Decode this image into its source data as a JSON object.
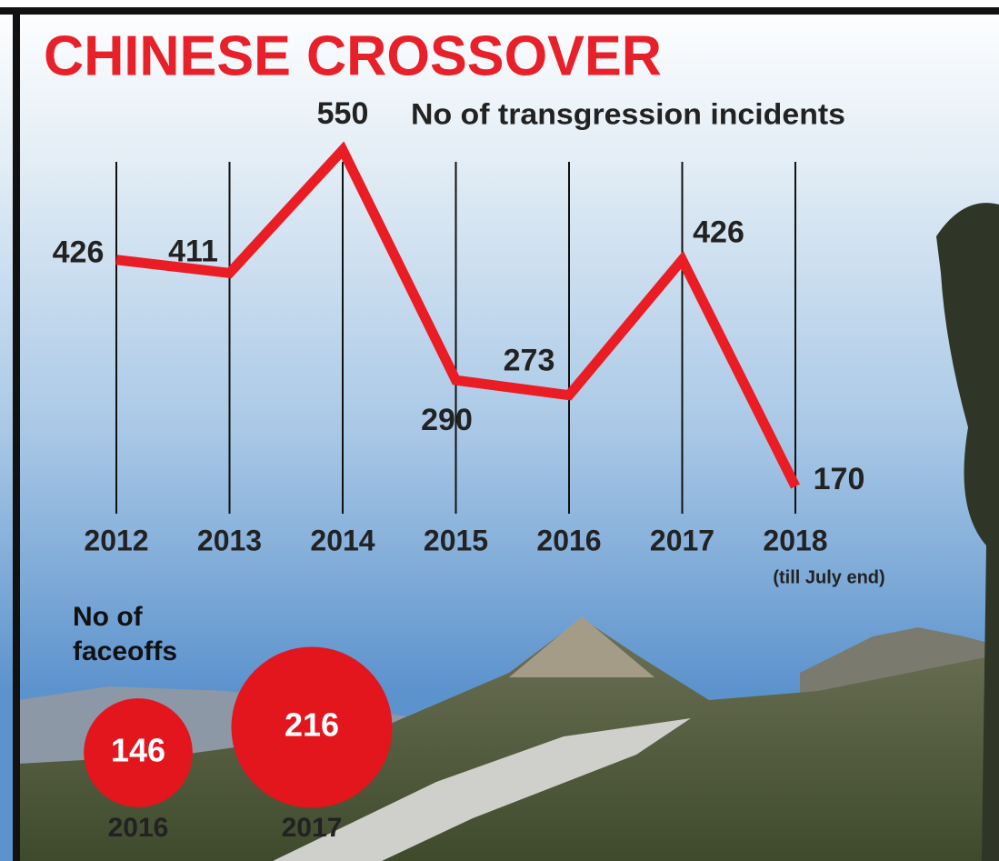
{
  "chart_data": [
    {
      "type": "line",
      "title": "CHINESE CROSSOVER",
      "subtitle": "No of transgression incidents",
      "categories": [
        "2012",
        "2013",
        "2014",
        "2015",
        "2016",
        "2017",
        "2018"
      ],
      "values": [
        426,
        411,
        550,
        290,
        273,
        426,
        170
      ],
      "color": "#ea1c24",
      "annotation": "(till July end)"
    },
    {
      "type": "bubble",
      "title": "No of faceoffs",
      "categories": [
        "2016",
        "2017"
      ],
      "values": [
        146,
        216
      ],
      "color": "#e3151d"
    }
  ]
}
